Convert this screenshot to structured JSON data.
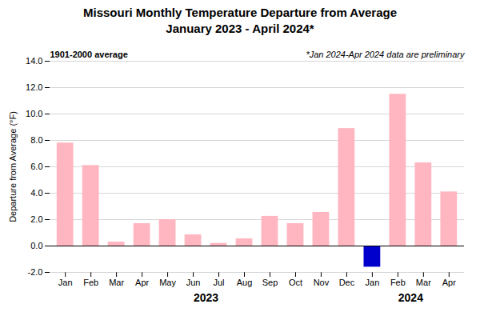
{
  "chart_data": {
    "type": "bar",
    "title": "Missouri Monthly Temperature Departure from Average",
    "subtitle": "January 2023 - April 2024*",
    "ylabel": "Departure from Average (°F)",
    "categories": [
      "Jan",
      "Feb",
      "Mar",
      "Apr",
      "May",
      "Jun",
      "Jul",
      "Aug",
      "Sep",
      "Oct",
      "Nov",
      "Dec",
      "Jan",
      "Feb",
      "Mar",
      "Apr"
    ],
    "values": [
      7.8,
      6.1,
      0.3,
      1.7,
      2.0,
      0.85,
      0.2,
      0.55,
      2.25,
      1.7,
      2.55,
      8.9,
      -1.6,
      11.5,
      6.3,
      4.1
    ],
    "colors": [
      "#FFB6C1",
      "#FFB6C1",
      "#FFB6C1",
      "#FFB6C1",
      "#FFB6C1",
      "#FFB6C1",
      "#FFB6C1",
      "#FFB6C1",
      "#FFB6C1",
      "#FFB6C1",
      "#FFB6C1",
      "#FFB6C1",
      "#0000CD",
      "#FFB6C1",
      "#FFB6C1",
      "#FFB6C1"
    ],
    "ylim": [
      -2.0,
      14.0
    ],
    "yticks": [
      {
        "value": -2.0,
        "label": "-2.0"
      },
      {
        "value": 0.0,
        "label": "0.0"
      },
      {
        "value": 2.0,
        "label": "2.0"
      },
      {
        "value": 4.0,
        "label": "4.0"
      },
      {
        "value": 6.0,
        "label": "6.0"
      },
      {
        "value": 8.0,
        "label": "8.0"
      },
      {
        "value": 10.0,
        "label": "10.0"
      },
      {
        "value": 12.0,
        "label": "12.0"
      },
      {
        "value": 14.0,
        "label": "14.0"
      }
    ],
    "grid": true,
    "annotations": [
      {
        "text": "1901-2000 average"
      },
      {
        "text": "*Jan 2024-Apr 2024 data are preliminary"
      },
      {
        "text": "2023",
        "x": 5.5
      },
      {
        "text": "2024",
        "x": 13.5
      }
    ]
  }
}
